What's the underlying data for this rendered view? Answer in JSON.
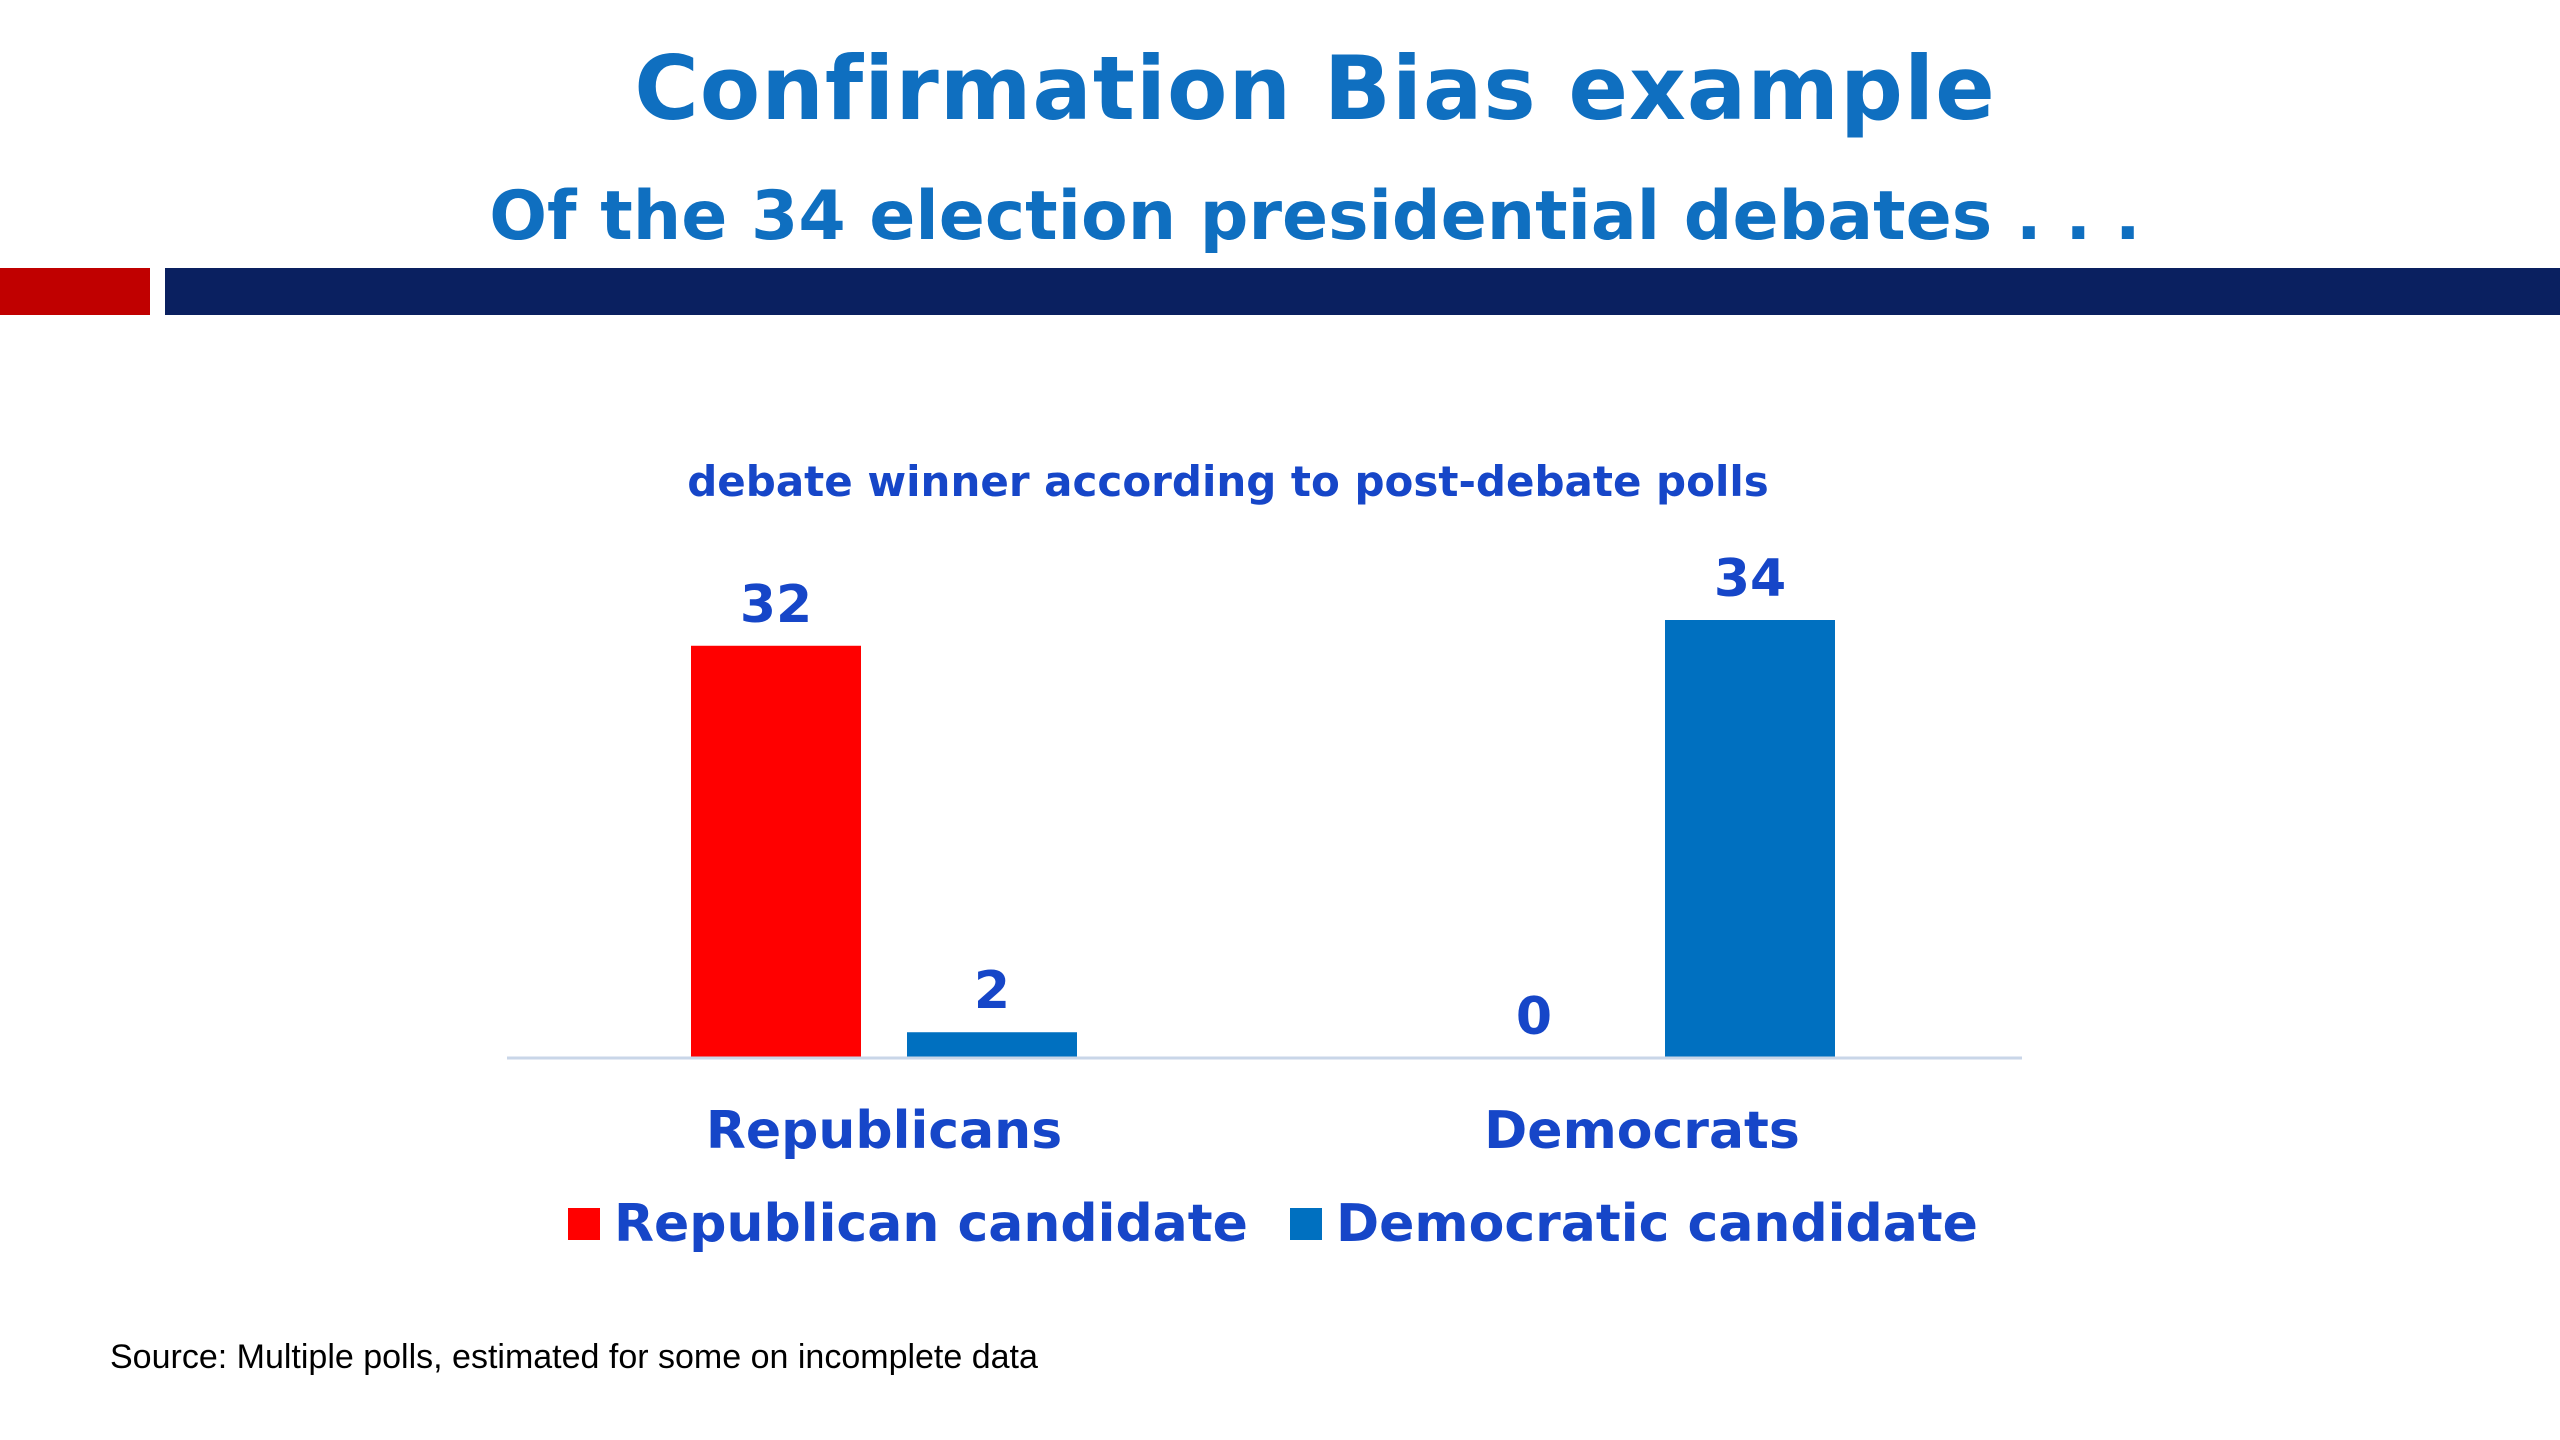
{
  "slide": {
    "title": "Confirmation Bias example",
    "subtitle": "Of the 34 election presidential debates . . .",
    "source": "Source: Multiple polls, estimated for some on incomplete data"
  },
  "colors": {
    "accent_red": "#c00000",
    "accent_navy": "#0a2060",
    "title_blue": "#0f6fc0",
    "label_blue": "#1646c8"
  },
  "chart_data": {
    "type": "bar",
    "title": "debate winner according to post-debate polls",
    "categories": [
      "Republicans",
      "Democrats"
    ],
    "series": [
      {
        "name": "Republican candidate",
        "color": "#ff0000",
        "values": [
          32,
          0
        ]
      },
      {
        "name": "Democratic candidate",
        "color": "#0070c0",
        "values": [
          2,
          34
        ]
      }
    ],
    "xlabel": "",
    "ylabel": "",
    "ylim": [
      0,
      34
    ],
    "grid": false,
    "data_labels": true,
    "legend": "bottom"
  }
}
